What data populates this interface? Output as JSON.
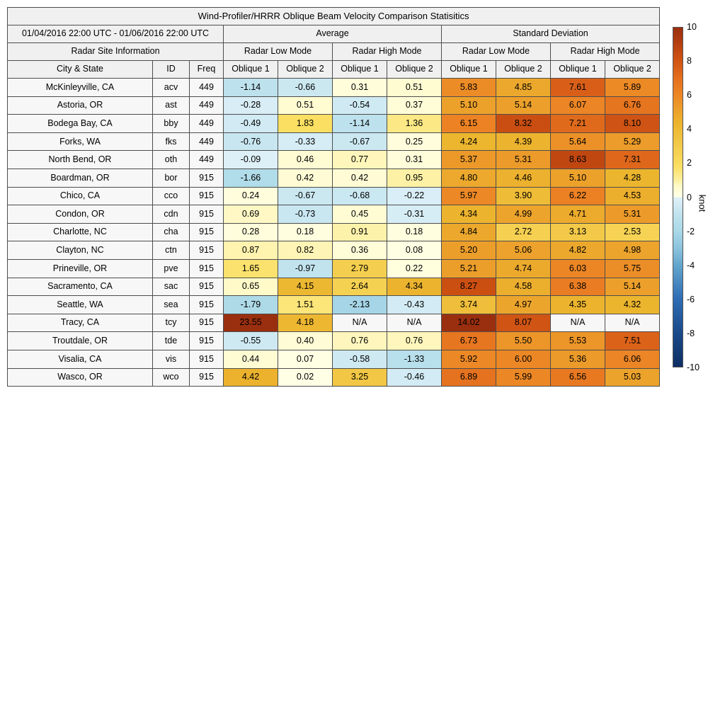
{
  "title": "Wind-Profiler/HRRR Oblique Beam Velocity Comparison Statisitics",
  "table": {
    "date_range": "01/04/2016 22:00 UTC - 01/06/2016 22:00 UTC",
    "avg_label": "Average",
    "std_label": "Standard Deviation",
    "site_info_label": "Radar Site Information",
    "low_mode_label": "Radar Low Mode",
    "high_mode_label": "Radar High Mode",
    "city_label": "City & State",
    "id_label": "ID",
    "freq_label": "Freq",
    "oblique1_label": "Oblique 1",
    "oblique2_label": "Oblique 2",
    "na_label": "N/A"
  },
  "colorbar": {
    "label": "knot",
    "min": -10,
    "max": 10,
    "ticks": [
      10,
      8,
      6,
      4,
      2,
      0,
      -2,
      -4,
      -6,
      -8,
      -10
    ],
    "stops": [
      [
        -10,
        "#0d2d62"
      ],
      [
        -8,
        "#1a4a8a"
      ],
      [
        -6,
        "#2f6db4"
      ],
      [
        -4,
        "#63a6cd"
      ],
      [
        -3,
        "#8cc3dd"
      ],
      [
        -2,
        "#a9d8e7"
      ],
      [
        -1,
        "#c0e3ee"
      ],
      [
        -0.02,
        "#e0f1f8"
      ],
      [
        0.02,
        "#ffffe5"
      ],
      [
        0.6,
        "#fffbce"
      ],
      [
        1,
        "#fdefa0"
      ],
      [
        1.8,
        "#fbdf63"
      ],
      [
        3,
        "#f3cb4b"
      ],
      [
        4.3,
        "#ecb52e"
      ],
      [
        5,
        "#eca42c"
      ],
      [
        6.2,
        "#ec8124"
      ],
      [
        7,
        "#e4701e"
      ],
      [
        7.6,
        "#d95f18"
      ],
      [
        8.3,
        "#cb4e12"
      ],
      [
        9.2,
        "#b03c10"
      ],
      [
        10,
        "#9a2f0f"
      ]
    ]
  },
  "chart_data": {
    "type": "heatmap",
    "title": "Wind-Profiler/HRRR Oblique Beam Velocity Comparison Statisitics",
    "unit": "knot",
    "value_range": [
      -10,
      10
    ],
    "column_groups": [
      "Average Radar Low Mode",
      "Average Radar High Mode",
      "Standard Deviation Radar Low Mode",
      "Standard Deviation Radar High Mode"
    ],
    "columns": [
      "Avg Low Oblique 1",
      "Avg Low Oblique 2",
      "Avg High Oblique 1",
      "Avg High Oblique 2",
      "Std Low Oblique 1",
      "Std Low Oblique 2",
      "Std High Oblique 1",
      "Std High Oblique 2"
    ],
    "rows": [
      {
        "city": "McKinleyville, CA",
        "id": "acv",
        "freq": "449",
        "values": [
          -1.14,
          -0.66,
          0.31,
          0.51,
          5.83,
          4.85,
          7.61,
          5.89
        ]
      },
      {
        "city": "Astoria, OR",
        "id": "ast",
        "freq": "449",
        "values": [
          -0.28,
          0.51,
          -0.54,
          0.37,
          5.1,
          5.14,
          6.07,
          6.76
        ]
      },
      {
        "city": "Bodega Bay, CA",
        "id": "bby",
        "freq": "449",
        "values": [
          -0.49,
          1.83,
          -1.14,
          1.36,
          6.15,
          8.32,
          7.21,
          8.1
        ]
      },
      {
        "city": "Forks, WA",
        "id": "fks",
        "freq": "449",
        "values": [
          -0.76,
          -0.33,
          -0.67,
          0.25,
          4.24,
          4.39,
          5.64,
          5.29
        ]
      },
      {
        "city": "North Bend, OR",
        "id": "oth",
        "freq": "449",
        "values": [
          -0.09,
          0.46,
          0.77,
          0.31,
          5.37,
          5.31,
          8.63,
          7.31
        ]
      },
      {
        "city": "Boardman, OR",
        "id": "bor",
        "freq": "915",
        "values": [
          -1.66,
          0.42,
          0.42,
          0.95,
          4.8,
          4.46,
          5.1,
          4.28
        ]
      },
      {
        "city": "Chico, CA",
        "id": "cco",
        "freq": "915",
        "values": [
          0.24,
          -0.67,
          -0.68,
          -0.22,
          5.97,
          3.9,
          6.22,
          4.53
        ]
      },
      {
        "city": "Condon, OR",
        "id": "cdn",
        "freq": "915",
        "values": [
          0.69,
          -0.73,
          0.45,
          -0.31,
          4.34,
          4.99,
          4.71,
          5.31
        ]
      },
      {
        "city": "Charlotte, NC",
        "id": "cha",
        "freq": "915",
        "values": [
          0.28,
          0.18,
          0.91,
          0.18,
          4.84,
          2.72,
          3.13,
          2.53
        ]
      },
      {
        "city": "Clayton, NC",
        "id": "ctn",
        "freq": "915",
        "values": [
          0.87,
          0.82,
          0.36,
          0.08,
          5.2,
          5.06,
          4.82,
          4.98
        ]
      },
      {
        "city": "Prineville, OR",
        "id": "pve",
        "freq": "915",
        "values": [
          1.65,
          -0.97,
          2.79,
          0.22,
          5.21,
          4.74,
          6.03,
          5.75
        ]
      },
      {
        "city": "Sacramento, CA",
        "id": "sac",
        "freq": "915",
        "values": [
          0.65,
          4.15,
          2.64,
          4.34,
          8.27,
          4.58,
          6.38,
          5.14
        ]
      },
      {
        "city": "Seattle, WA",
        "id": "sea",
        "freq": "915",
        "values": [
          -1.79,
          1.51,
          -2.13,
          -0.43,
          3.74,
          4.97,
          4.35,
          4.32
        ]
      },
      {
        "city": "Tracy, CA",
        "id": "tcy",
        "freq": "915",
        "values": [
          23.55,
          4.18,
          "N/A",
          "N/A",
          14.02,
          8.07,
          "N/A",
          "N/A"
        ]
      },
      {
        "city": "Troutdale, OR",
        "id": "tde",
        "freq": "915",
        "values": [
          -0.55,
          0.4,
          0.76,
          0.76,
          6.73,
          5.5,
          5.53,
          7.51
        ]
      },
      {
        "city": "Visalia, CA",
        "id": "vis",
        "freq": "915",
        "values": [
          0.44,
          0.07,
          -0.58,
          -1.33,
          5.92,
          6.0,
          5.36,
          6.06
        ]
      },
      {
        "city": "Wasco, OR",
        "id": "wco",
        "freq": "915",
        "values": [
          4.42,
          0.02,
          3.25,
          -0.46,
          6.89,
          5.99,
          6.56,
          5.03
        ]
      }
    ]
  }
}
